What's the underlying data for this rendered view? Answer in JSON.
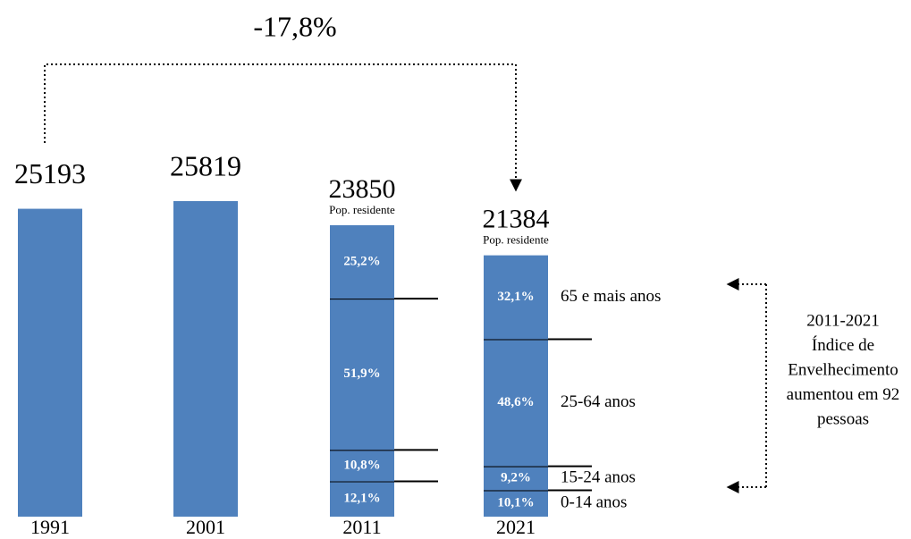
{
  "chart_data": {
    "type": "bar",
    "categories": [
      "1991",
      "2001",
      "2011",
      "2021"
    ],
    "values": [
      25193,
      25819,
      23850,
      21384
    ],
    "color": "#4f81bd",
    "sublabel": "Pop. residente",
    "change_annotation": "-17,8%",
    "note": [
      "2011-2021",
      "Índice de",
      "Envelhecimento",
      "aumentou em 92",
      "pessoas"
    ],
    "breakdown": {
      "categories": [
        "0-14 anos",
        "15-24 anos",
        "25-64 anos",
        "65 e mais anos"
      ],
      "series": [
        {
          "name": "2011",
          "values": [
            12.1,
            10.8,
            51.9,
            25.2
          ],
          "value_labels": [
            "12,1%",
            "10,8%",
            "51,9%",
            "25,2%"
          ]
        },
        {
          "name": "2021",
          "values": [
            10.1,
            9.2,
            48.6,
            32.1
          ],
          "value_labels": [
            "10,1%",
            "9,2%",
            "48,6%",
            "32,1%"
          ]
        }
      ]
    }
  }
}
